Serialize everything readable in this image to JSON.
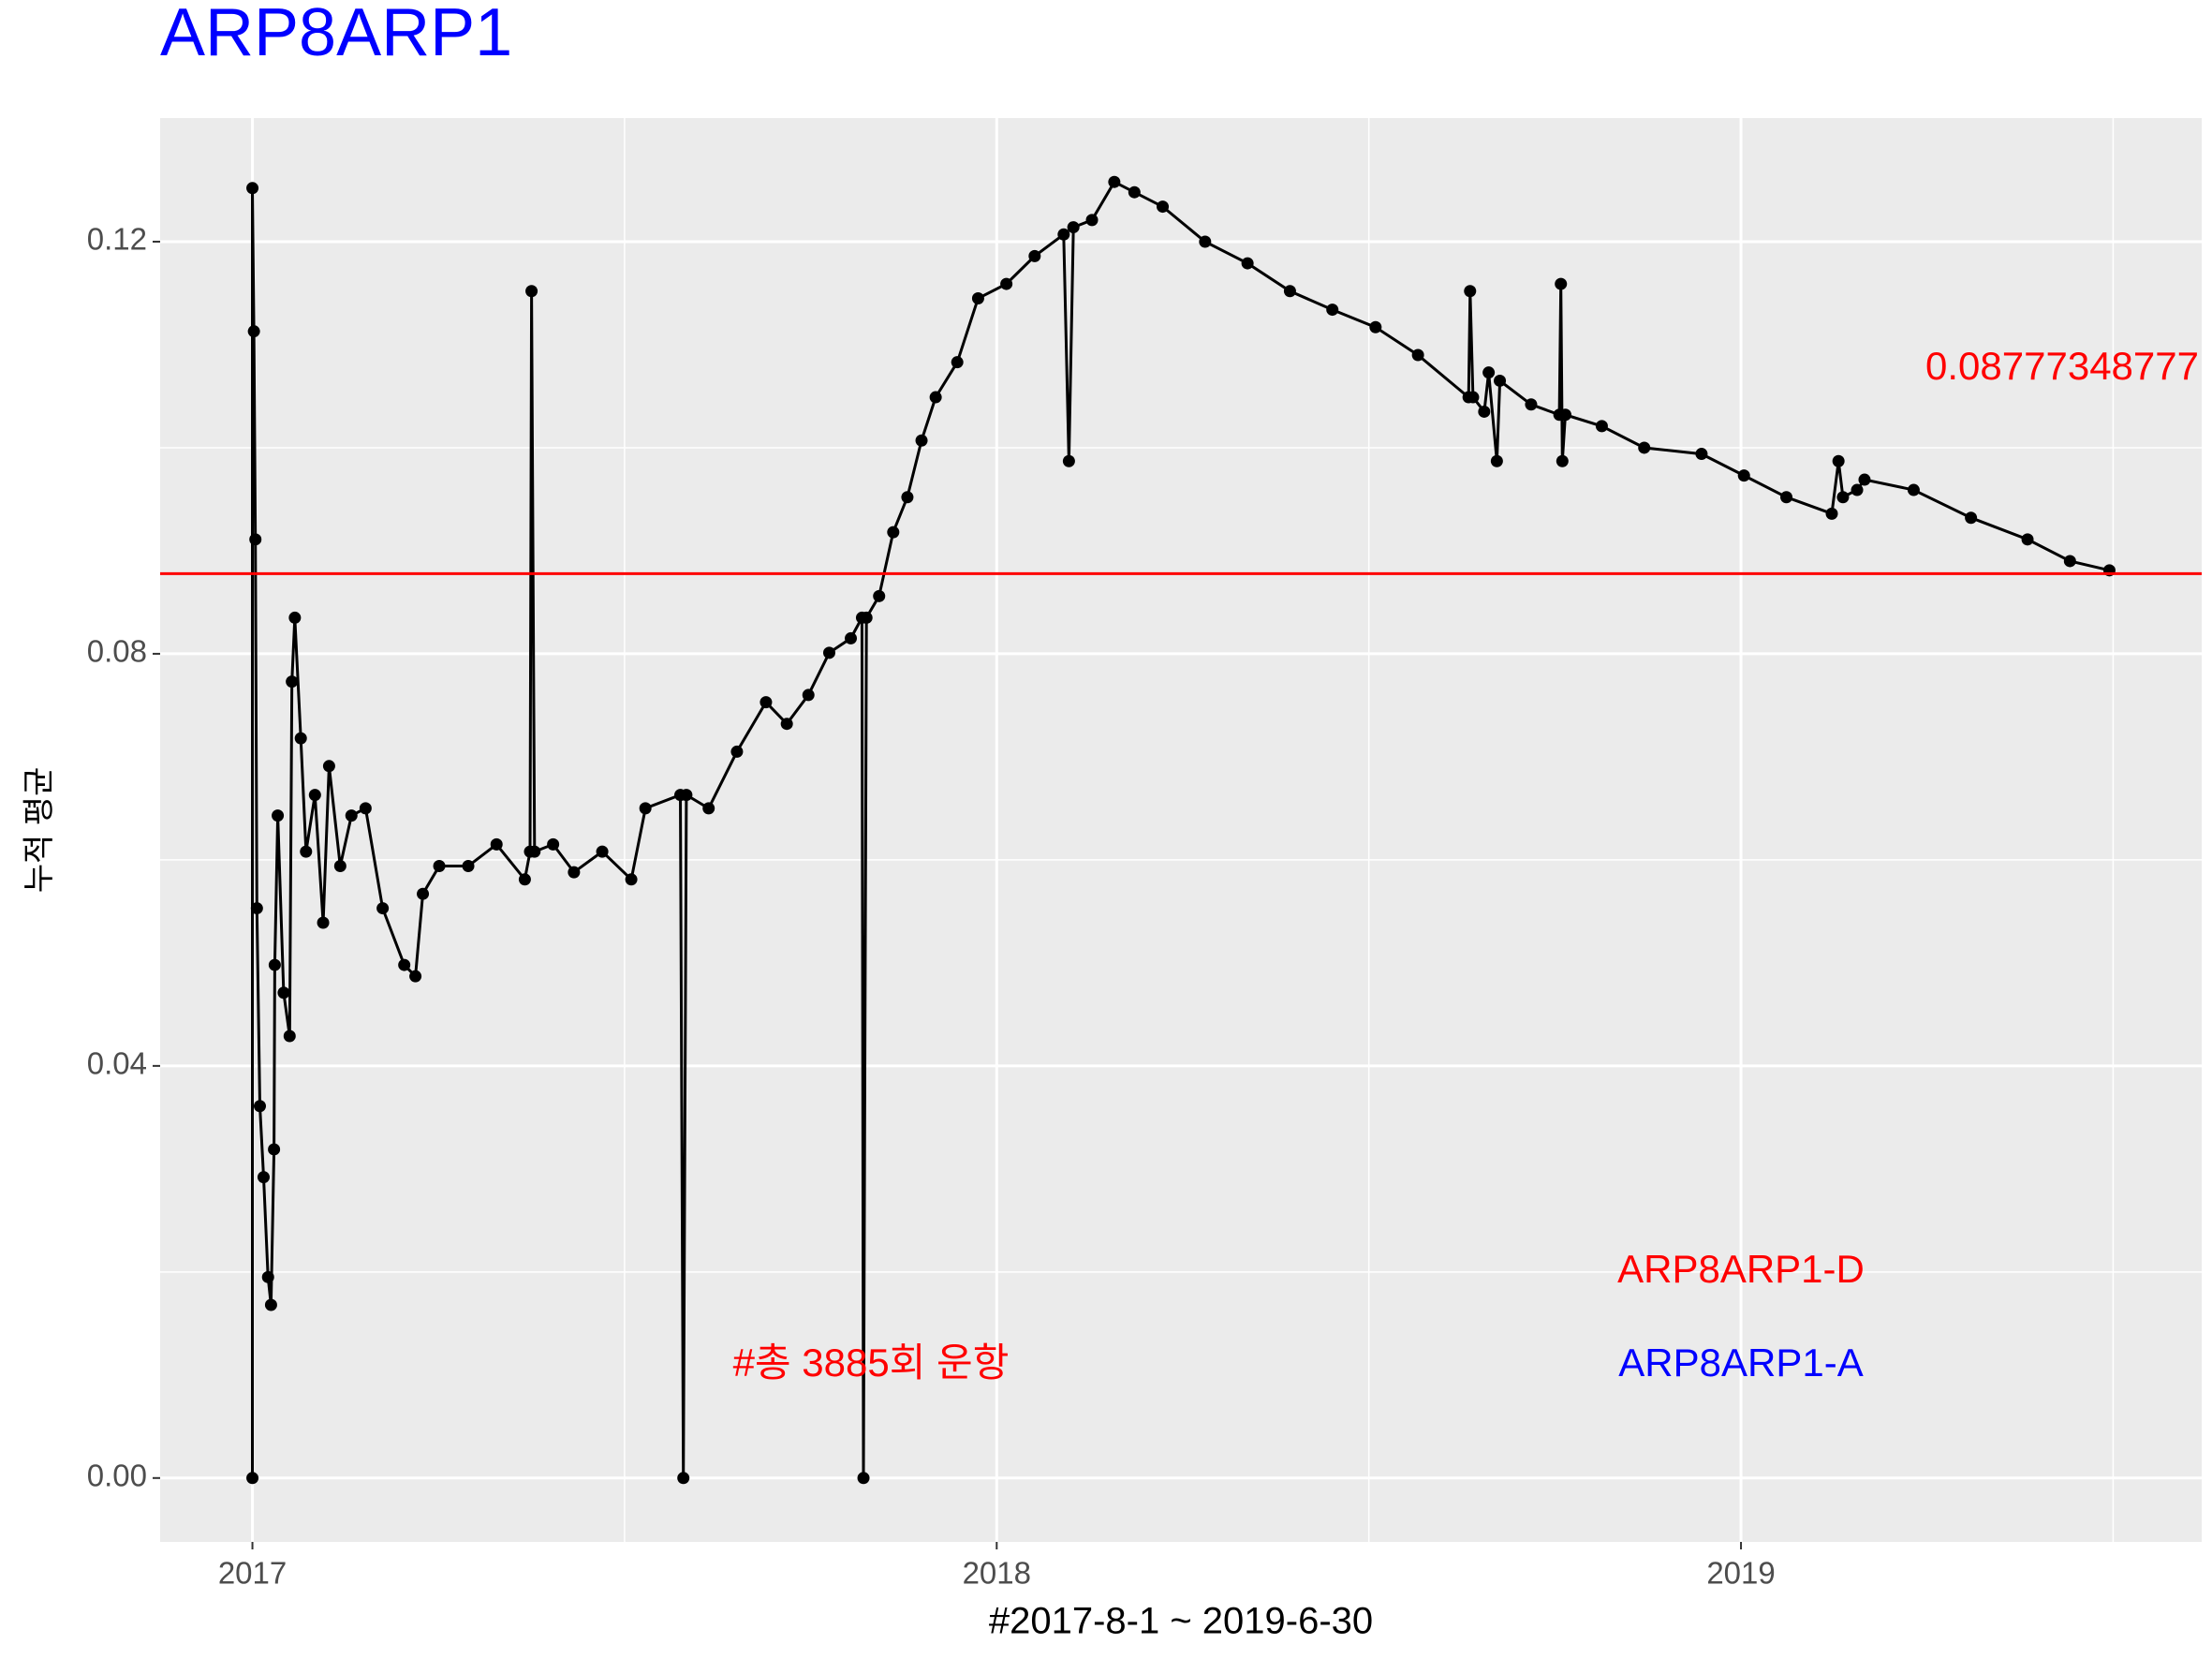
{
  "chart_data": {
    "type": "line",
    "title": "ARP8ARP1",
    "title_color": "#0000ff",
    "x_label": "#2017-8-1 ~ 2019-6-30",
    "y_label": "누적 평균",
    "xlim": [
      2016.876,
      2019.619
    ],
    "xticks": [
      2017,
      2018,
      2019
    ],
    "minor_xticks": [
      2017.5,
      2018.5,
      2019.5
    ],
    "ylim": [
      -0.0062,
      0.132
    ],
    "yticks": [
      {
        "value": 0,
        "label": "0.00"
      },
      0.04,
      0.08,
      0.12
    ],
    "minor_yticks": [
      0.02,
      0.06,
      0.1
    ],
    "grid": true,
    "series": [
      {
        "color": "#000000",
        "x": [
          2017.0,
          2017.0,
          2017.002,
          2017.004,
          2017.006,
          2017.01,
          2017.015,
          2017.021,
          2017.025,
          2017.029,
          2017.03,
          2017.034,
          2017.042,
          2017.05,
          2017.053,
          2017.057,
          2017.065,
          2017.072,
          2017.084,
          2017.095,
          2017.103,
          2017.118,
          2017.133,
          2017.152,
          2017.175,
          2017.204,
          2017.219,
          2017.229,
          2017.251,
          2017.29,
          2017.328,
          2017.366,
          2017.373,
          2017.375,
          2017.379,
          2017.404,
          2017.432,
          2017.47,
          2017.509,
          2017.528,
          2017.575,
          2017.579,
          2017.583,
          2017.613,
          2017.651,
          2017.69,
          2017.718,
          2017.747,
          2017.775,
          2017.804,
          2017.819,
          2017.821,
          2017.825,
          2017.842,
          2017.861,
          2017.88,
          2017.899,
          2017.918,
          2017.947,
          2017.975,
          2018.013,
          2018.051,
          2018.09,
          2018.097,
          2018.103,
          2018.128,
          2018.158,
          2018.185,
          2018.223,
          2018.28,
          2018.337,
          2018.394,
          2018.451,
          2018.509,
          2018.566,
          2018.634,
          2018.636,
          2018.64,
          2018.655,
          2018.661,
          2018.672,
          2018.676,
          2018.718,
          2018.756,
          2018.758,
          2018.76,
          2018.764,
          2018.813,
          2018.87,
          2018.947,
          2019.004,
          2019.061,
          2019.122,
          2019.131,
          2019.137,
          2019.156,
          2019.166,
          2019.232,
          2019.309,
          2019.385,
          2019.442,
          2019.495
        ],
        "values": [
          0,
          0.1252,
          0.1113,
          0.0911,
          0.0553,
          0.0361,
          0.0292,
          0.0195,
          0.0168,
          0.0319,
          0.0498,
          0.0643,
          0.0471,
          0.0429,
          0.0773,
          0.0835,
          0.0718,
          0.0608,
          0.0663,
          0.0539,
          0.0691,
          0.0594,
          0.0643,
          0.065,
          0.0553,
          0.0498,
          0.0487,
          0.0567,
          0.0594,
          0.0594,
          0.0615,
          0.0581,
          0.0608,
          0.1152,
          0.0608,
          0.0615,
          0.0588,
          0.0608,
          0.0581,
          0.065,
          0.0663,
          0,
          0.0663,
          0.065,
          0.0705,
          0.0753,
          0.0732,
          0.076,
          0.0801,
          0.0815,
          0.0835,
          0,
          0.0835,
          0.0856,
          0.0918,
          0.0952,
          0.1007,
          0.1049,
          0.1083,
          0.1145,
          0.1159,
          0.1186,
          0.1207,
          0.0987,
          0.1214,
          0.1221,
          0.1258,
          0.1248,
          0.1234,
          0.12,
          0.1179,
          0.1152,
          0.1134,
          0.1117,
          0.109,
          0.1049,
          0.1152,
          0.1049,
          0.1035,
          0.1073,
          0.0987,
          0.1065,
          0.1042,
          0.1032,
          0.1159,
          0.0987,
          0.1032,
          0.1021,
          0.1,
          0.0994,
          0.0973,
          0.0952,
          0.0936,
          0.0987,
          0.0952,
          0.0959,
          0.0969,
          0.0959,
          0.0932,
          0.0911,
          0.089,
          0.0881
        ]
      }
    ],
    "hline": {
      "value": 0.08777348777,
      "label": "0.08777348777",
      "color": "#ff0000"
    },
    "annotations": [
      {
        "text": "#총 3885회 운항",
        "color": "#ff0000"
      },
      {
        "text": "ARP8ARP1-D",
        "color": "#ff0000"
      },
      {
        "text": "ARP8ARP1-A",
        "color": "#0000ff"
      }
    ]
  }
}
